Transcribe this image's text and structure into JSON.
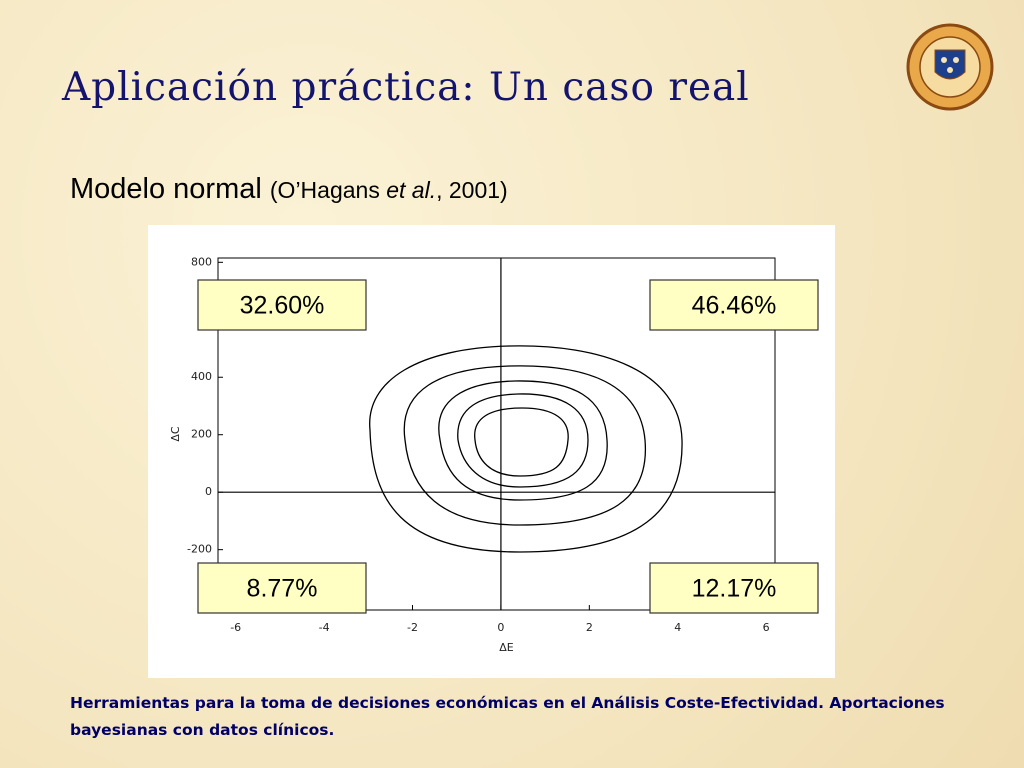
{
  "title": "Aplicación práctica: Un caso real",
  "subtitle": {
    "main": "Modelo normal",
    "ref_open": "(O’Hagans ",
    "ref_italic": "et al.",
    "ref_close": ", 2001)"
  },
  "chart_data": {
    "type": "contour",
    "x_label": "ΔE",
    "y_label": "ΔC",
    "xlim": [
      -6.4,
      6.2
    ],
    "ylim": [
      -410,
      815
    ],
    "xticks": [
      -6,
      -4,
      -2,
      0,
      2,
      4,
      6
    ],
    "yticks": [
      -200,
      0,
      200,
      400,
      800
    ],
    "quadrant_labels": {
      "top_left": "32.60%",
      "top_right": "46.46%",
      "bottom_left": "8.77%",
      "bottom_right": "12.17%"
    }
  },
  "footer": [
    "Herramientas para la toma de decisiones económicas en el Análisis Coste-Efectividad. Aportaciones",
    "bayesianas con datos clínicos."
  ]
}
